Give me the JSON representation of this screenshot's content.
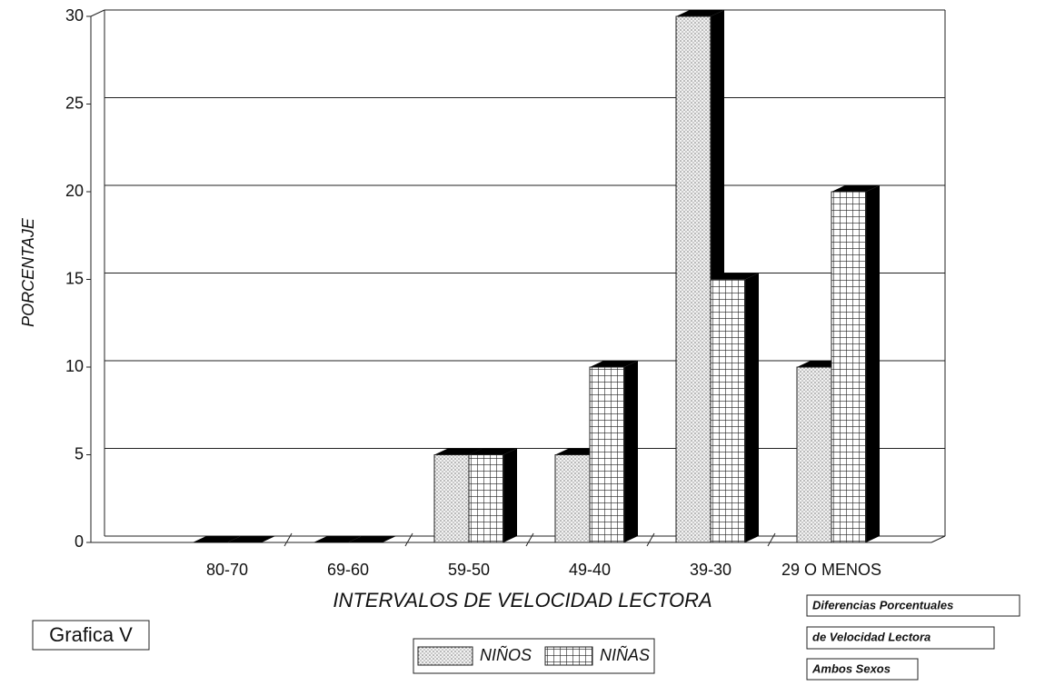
{
  "chart_data": {
    "type": "bar",
    "categories": [
      "80-70",
      "69-60",
      "59-50",
      "49-40",
      "39-30",
      "29 O MENOS"
    ],
    "series": [
      {
        "name": "NIÑOS",
        "values": [
          0,
          0,
          5,
          5,
          30,
          10
        ]
      },
      {
        "name": "NIÑAS",
        "values": [
          0,
          0,
          5,
          10,
          15,
          20
        ]
      }
    ],
    "ylabel": "PORCENTAJE",
    "xlabel": "INTERVALOS DE VELOCIDAD LECTORA",
    "ylim": [
      0,
      30
    ],
    "yticks": [
      0,
      5,
      10,
      15,
      20,
      25,
      30
    ],
    "grid": true,
    "annotations": [
      "Grafica V",
      "Diferencias Porcentuales",
      "de Velocidad Lectora",
      "Ambos Sexos"
    ]
  }
}
